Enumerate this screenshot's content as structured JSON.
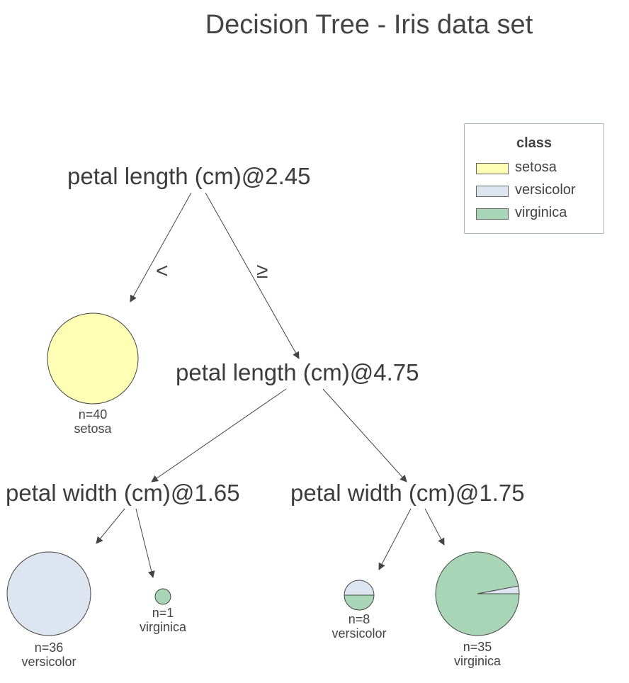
{
  "title": "Decision Tree - Iris data set",
  "colors": {
    "setosa": "#fefeb4",
    "versicolor": "#dde6f0",
    "virginica": "#a8d5b6",
    "stroke": "#444444"
  },
  "legend": {
    "title": "class",
    "items": [
      {
        "label": "setosa",
        "color": "#fefeb4"
      },
      {
        "label": "versicolor",
        "color": "#dde6f0"
      },
      {
        "label": "virginica",
        "color": "#a8d5b6"
      }
    ]
  },
  "edges": {
    "left": "<",
    "right": "≥"
  },
  "splits": {
    "root": "petal length (cm)@2.45",
    "node2": "petal length (cm)@4.75",
    "node3": "petal width (cm)@1.65",
    "node4": "petal width (cm)@1.75"
  },
  "leaves": {
    "leaf1": {
      "n": "n=40",
      "cls": "setosa",
      "fractions": {
        "setosa": 1,
        "versicolor": 0,
        "virginica": 0
      }
    },
    "leaf2": {
      "n": "n=36",
      "cls": "versicolor",
      "fractions": {
        "setosa": 0,
        "versicolor": 1,
        "virginica": 0
      }
    },
    "leaf3": {
      "n": "n=1",
      "cls": "virginica",
      "fractions": {
        "setosa": 0,
        "versicolor": 0,
        "virginica": 1
      }
    },
    "leaf4": {
      "n": "n=8",
      "cls": "versicolor",
      "fractions": {
        "setosa": 0,
        "versicolor": 0.5,
        "virginica": 0.5
      }
    },
    "leaf5": {
      "n": "n=35",
      "cls": "virginica",
      "fractions": {
        "setosa": 0,
        "versicolor": 0.03,
        "virginica": 0.97
      }
    }
  }
}
